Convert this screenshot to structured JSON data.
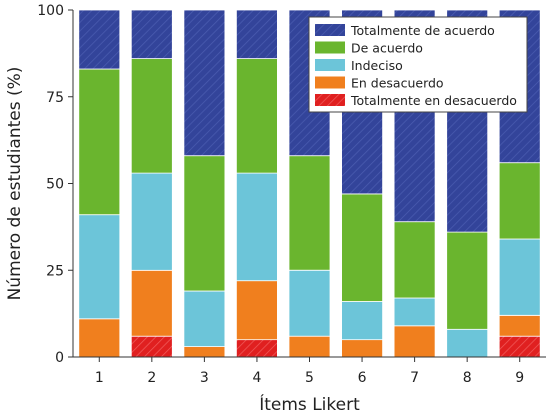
{
  "chart_data": {
    "type": "bar",
    "stacked": true,
    "title": "",
    "xlabel": "Ítems Likert",
    "ylabel": "Número de estudiantes (%)",
    "categories": [
      "1",
      "2",
      "3",
      "4",
      "5",
      "6",
      "7",
      "8",
      "9"
    ],
    "yticks": [
      0,
      25,
      50,
      75,
      100
    ],
    "ylim": [
      0,
      100
    ],
    "grid": false,
    "legend_position": "top-right",
    "series": [
      {
        "name": "Totalmente en desacuerdo",
        "color": "#e02020",
        "hatched": true,
        "values": [
          0,
          6,
          0,
          5,
          0,
          0,
          0,
          0,
          6
        ]
      },
      {
        "name": "En desacuerdo",
        "color": "#f07f1e",
        "values": [
          11,
          19,
          3,
          17,
          6,
          5,
          9,
          0,
          6
        ]
      },
      {
        "name": "Indeciso",
        "color": "#6cc5d9",
        "values": [
          30,
          28,
          16,
          31,
          19,
          11,
          8,
          8,
          22
        ]
      },
      {
        "name": "De acuerdo",
        "color": "#6ab52e",
        "values": [
          42,
          33,
          39,
          33,
          33,
          31,
          22,
          28,
          22
        ]
      },
      {
        "name": "Totalmente de acuerdo",
        "color": "#33449a",
        "hatched": true,
        "values": [
          17,
          14,
          42,
          14,
          42,
          53,
          61,
          64,
          44
        ]
      }
    ],
    "legend_order": [
      "Totalmente de acuerdo",
      "De acuerdo",
      "Indeciso",
      "En desacuerdo",
      "Totalmente en desacuerdo"
    ]
  }
}
